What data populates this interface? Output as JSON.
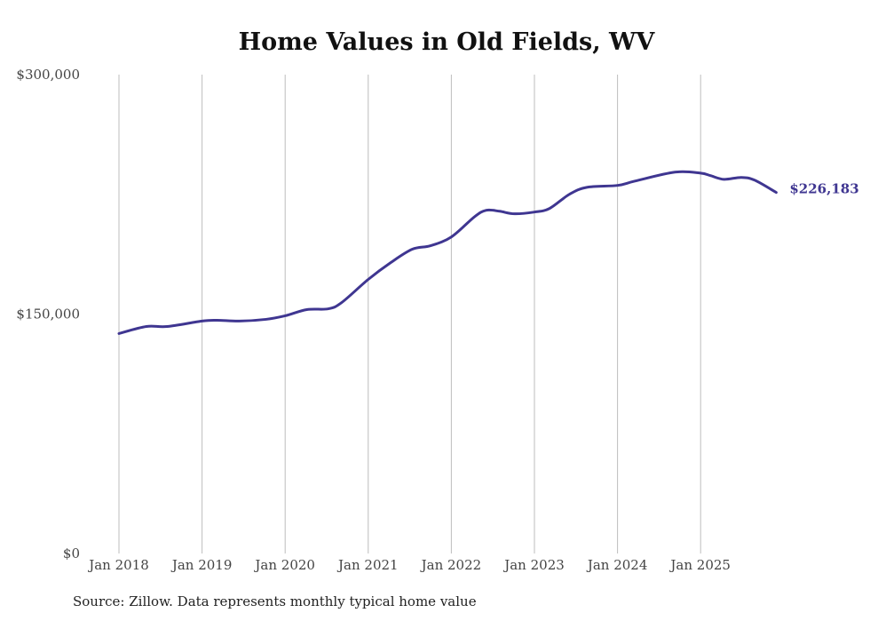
{
  "chart_data": {
    "type": "line",
    "title": "Home Values in Old Fields, WV",
    "xlabel": "",
    "ylabel": "",
    "ylim": [
      0,
      300000
    ],
    "xlim": [
      2018.0,
      2025.95
    ],
    "y_ticks": [
      {
        "value": 0,
        "label": "$0"
      },
      {
        "value": 150000,
        "label": "$150,000"
      },
      {
        "value": 300000,
        "label": "$300,000"
      }
    ],
    "x_ticks": [
      {
        "value": 2018,
        "label": "Jan 2018"
      },
      {
        "value": 2019,
        "label": "Jan 2019"
      },
      {
        "value": 2020,
        "label": "Jan 2020"
      },
      {
        "value": 2021,
        "label": "Jan 2021"
      },
      {
        "value": 2022,
        "label": "Jan 2022"
      },
      {
        "value": 2023,
        "label": "Jan 2023"
      },
      {
        "value": 2024,
        "label": "Jan 2024"
      },
      {
        "value": 2025,
        "label": "Jan 2025"
      }
    ],
    "grid": "vertical",
    "line_color": "#3f3691",
    "series": [
      {
        "name": "Typical home value",
        "points": [
          [
            2018.0,
            137800
          ],
          [
            2018.33,
            142200
          ],
          [
            2018.58,
            142200
          ],
          [
            2019.0,
            145600
          ],
          [
            2019.18,
            146100
          ],
          [
            2019.45,
            145600
          ],
          [
            2019.77,
            146700
          ],
          [
            2020.0,
            148900
          ],
          [
            2020.26,
            152800
          ],
          [
            2020.52,
            153300
          ],
          [
            2020.68,
            157200
          ],
          [
            2021.0,
            171700
          ],
          [
            2021.27,
            182200
          ],
          [
            2021.53,
            190600
          ],
          [
            2021.75,
            192800
          ],
          [
            2022.0,
            198300
          ],
          [
            2022.28,
            211000
          ],
          [
            2022.42,
            215000
          ],
          [
            2022.58,
            214400
          ],
          [
            2022.76,
            212800
          ],
          [
            2023.0,
            213900
          ],
          [
            2023.18,
            216100
          ],
          [
            2023.42,
            225000
          ],
          [
            2023.63,
            229400
          ],
          [
            2024.0,
            230600
          ],
          [
            2024.21,
            233300
          ],
          [
            2024.69,
            238900
          ],
          [
            2025.0,
            238300
          ],
          [
            2025.12,
            236700
          ],
          [
            2025.28,
            234400
          ],
          [
            2025.49,
            235600
          ],
          [
            2025.65,
            233900
          ],
          [
            2025.91,
            226183
          ]
        ]
      }
    ],
    "end_label": "$226,183",
    "source": "Source: Zillow. Data represents monthly typical home value"
  }
}
